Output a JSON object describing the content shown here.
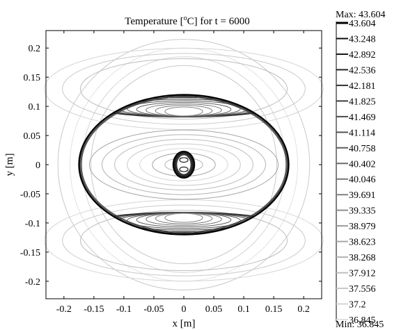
{
  "chart_data": {
    "type": "contour",
    "title_prefix": "Temperature [",
    "title_unit_sup": "o",
    "title_suffix": "C] for t = 6000",
    "xlabel": "x [m]",
    "ylabel": "y [m]",
    "xlim": [
      -0.23,
      0.23
    ],
    "ylim": [
      -0.23,
      0.23
    ],
    "xticks": [
      "-0.2",
      "-0.15",
      "-0.1",
      "-0.05",
      "0",
      "0.05",
      "0.1",
      "0.15",
      "0.2"
    ],
    "yticks": [
      "0.2",
      "0.15",
      "0.1",
      "0.05",
      "0",
      "-0.05",
      "-0.1",
      "-0.15",
      "-0.2"
    ],
    "ellipse": {
      "semi_axis_x": 0.175,
      "semi_axis_y": 0.12
    },
    "max_label": "Max: 43.604",
    "min_label": "Min: 36.845",
    "levels": [
      "43.604",
      "43.248",
      "42.892",
      "42.536",
      "42.181",
      "41.825",
      "41.469",
      "41.114",
      "40.758",
      "40.402",
      "40.046",
      "39.691",
      "39.335",
      "38.979",
      "38.623",
      "38.268",
      "37.912",
      "37.556",
      "37.2",
      "36.845"
    ]
  }
}
